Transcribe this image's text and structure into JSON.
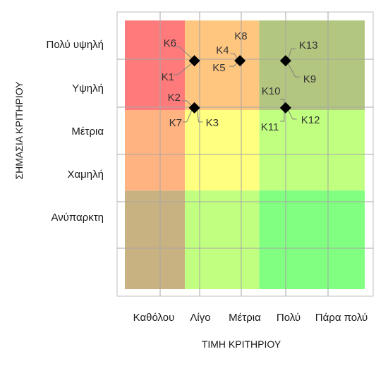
{
  "chart_data": {
    "type": "scatter",
    "xlabel": "ΤΙΜΗ ΚΡΙΤΗΡΙΟΥ",
    "ylabel": "ΣΗΜΑΣΙΑ ΚΡΙΤΗΡΙΟΥ",
    "x_categories": [
      "Καθόλου",
      "Λίγο",
      "Μέτρια",
      "Πολύ",
      "Πάρα πολύ"
    ],
    "y_categories": [
      "Πολύ υψηλή",
      "Υψηλή",
      "Μέτρια",
      "Χαμηλή",
      "Ανύπαρκτη"
    ],
    "grid": true,
    "points": [
      {
        "x": 1.45,
        "y": 5.1,
        "labels": [
          "K6",
          "K1"
        ]
      },
      {
        "x": 2.4,
        "y": 5.1,
        "labels": [
          "K8",
          "K4",
          "K5"
        ]
      },
      {
        "x": 3.35,
        "y": 5.1,
        "labels": [
          "K13",
          "K9"
        ]
      },
      {
        "x": 1.45,
        "y": 4.05,
        "labels": [
          "K2",
          "K7",
          "K3"
        ]
      },
      {
        "x": 3.35,
        "y": 4.05,
        "labels": [
          "K10",
          "K11",
          "K12"
        ]
      }
    ],
    "colors": {
      "red": "#ff7b7b",
      "orange_high": "#ffc680",
      "green_high": "#b3c67f",
      "orange_mid": "#ffb381",
      "yellow": "#ffff80",
      "lightgreen": "#c1ff80",
      "green": "#80ff80",
      "brown": "#c9b281",
      "brightgreen": "#80ff80"
    }
  }
}
